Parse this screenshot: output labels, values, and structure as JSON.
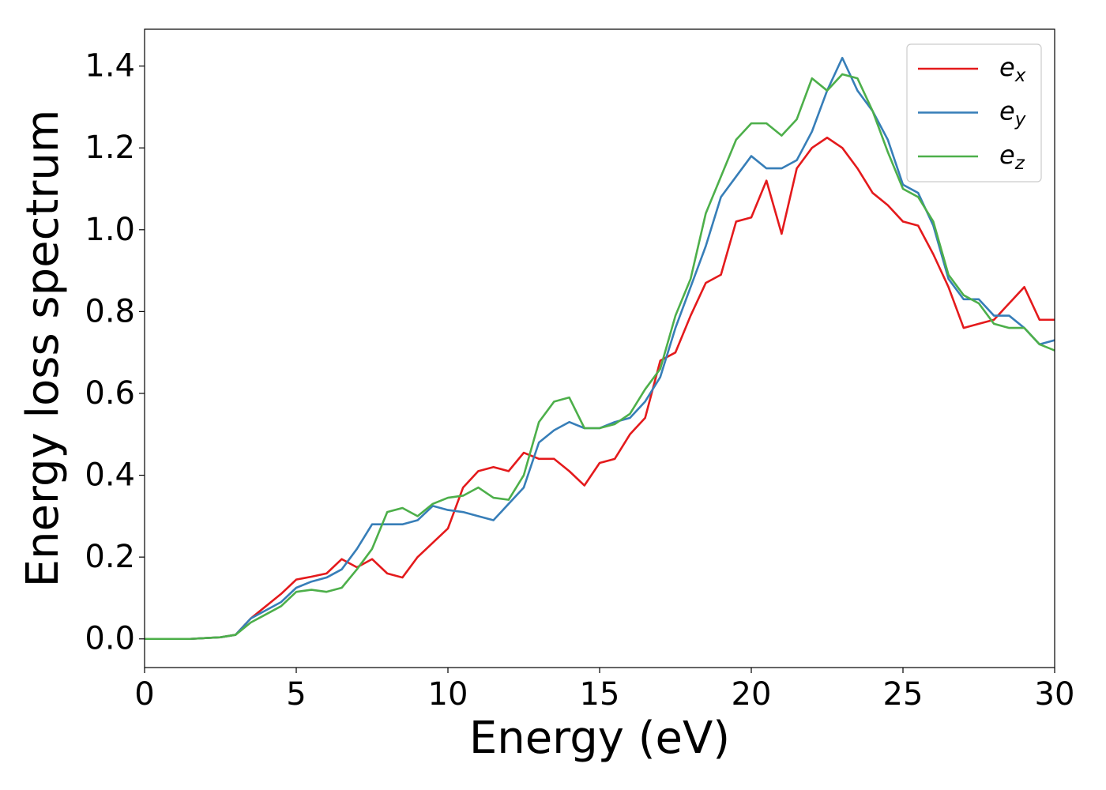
{
  "chart_data": {
    "type": "line",
    "xlabel": "Energy (eV)",
    "ylabel": "Energy loss spectrum",
    "x": [
      0,
      0.5,
      1,
      1.5,
      2,
      2.5,
      3,
      3.5,
      4,
      4.5,
      5,
      5.5,
      6,
      6.5,
      7,
      7.5,
      8,
      8.5,
      9,
      9.5,
      10,
      10.5,
      11,
      11.5,
      12,
      12.5,
      13,
      13.5,
      14,
      14.5,
      15,
      15.5,
      16,
      16.5,
      17,
      17.5,
      18,
      18.5,
      19,
      19.5,
      20,
      20.5,
      21,
      21.5,
      22,
      22.5,
      23,
      23.5,
      24,
      24.5,
      25,
      25.5,
      26,
      26.5,
      27,
      27.5,
      28,
      28.5,
      29,
      29.5,
      30
    ],
    "series": [
      {
        "name": "ex",
        "color": "#e41a1c",
        "values": [
          0,
          0,
          0,
          0,
          0.002,
          0.004,
          0.01,
          0.05,
          0.08,
          0.11,
          0.145,
          0.152,
          0.16,
          0.195,
          0.175,
          0.195,
          0.16,
          0.15,
          0.2,
          0.235,
          0.27,
          0.37,
          0.41,
          0.42,
          0.41,
          0.455,
          0.44,
          0.44,
          0.41,
          0.375,
          0.43,
          0.44,
          0.5,
          0.54,
          0.68,
          0.7,
          0.79,
          0.87,
          0.89,
          1.02,
          1.03,
          1.12,
          0.99,
          1.15,
          1.2,
          1.225,
          1.2,
          1.15,
          1.09,
          1.06,
          1.02,
          1.01,
          0.94,
          0.86,
          0.76,
          0.77,
          0.78,
          0.82,
          0.86,
          0.78,
          0.78
        ]
      },
      {
        "name": "ey",
        "color": "#377eb8",
        "values": [
          0,
          0,
          0,
          0,
          0.002,
          0.004,
          0.01,
          0.05,
          0.07,
          0.09,
          0.125,
          0.14,
          0.15,
          0.17,
          0.22,
          0.28,
          0.28,
          0.28,
          0.29,
          0.325,
          0.315,
          0.31,
          0.3,
          0.29,
          0.33,
          0.37,
          0.48,
          0.51,
          0.53,
          0.515,
          0.515,
          0.53,
          0.54,
          0.58,
          0.64,
          0.76,
          0.86,
          0.96,
          1.08,
          1.13,
          1.18,
          1.15,
          1.15,
          1.17,
          1.24,
          1.34,
          1.42,
          1.34,
          1.29,
          1.22,
          1.11,
          1.09,
          1.01,
          0.88,
          0.83,
          0.83,
          0.79,
          0.79,
          0.76,
          0.72,
          0.73
        ]
      },
      {
        "name": "ez",
        "color": "#4daf4a",
        "values": [
          0,
          0,
          0,
          0,
          0.002,
          0.004,
          0.01,
          0.04,
          0.06,
          0.08,
          0.115,
          0.12,
          0.115,
          0.125,
          0.17,
          0.22,
          0.31,
          0.32,
          0.3,
          0.33,
          0.345,
          0.35,
          0.37,
          0.345,
          0.34,
          0.4,
          0.53,
          0.58,
          0.59,
          0.515,
          0.515,
          0.525,
          0.55,
          0.61,
          0.66,
          0.79,
          0.88,
          1.04,
          1.13,
          1.22,
          1.26,
          1.26,
          1.23,
          1.27,
          1.37,
          1.34,
          1.38,
          1.37,
          1.29,
          1.19,
          1.1,
          1.08,
          1.02,
          0.89,
          0.84,
          0.82,
          0.77,
          0.76,
          0.76,
          0.72,
          0.705
        ]
      }
    ],
    "xlim": [
      0,
      30
    ],
    "xticks": [
      0,
      5,
      10,
      15,
      20,
      25,
      30
    ],
    "ylim": [
      -0.07,
      1.49
    ],
    "yticks": [
      {
        "value": 0,
        "label": "0.0"
      },
      0.2,
      0.4,
      0.6,
      0.8,
      {
        "value": 1,
        "label": "1.0"
      },
      1.2,
      1.4
    ],
    "legend": "upper right",
    "grid": false
  }
}
